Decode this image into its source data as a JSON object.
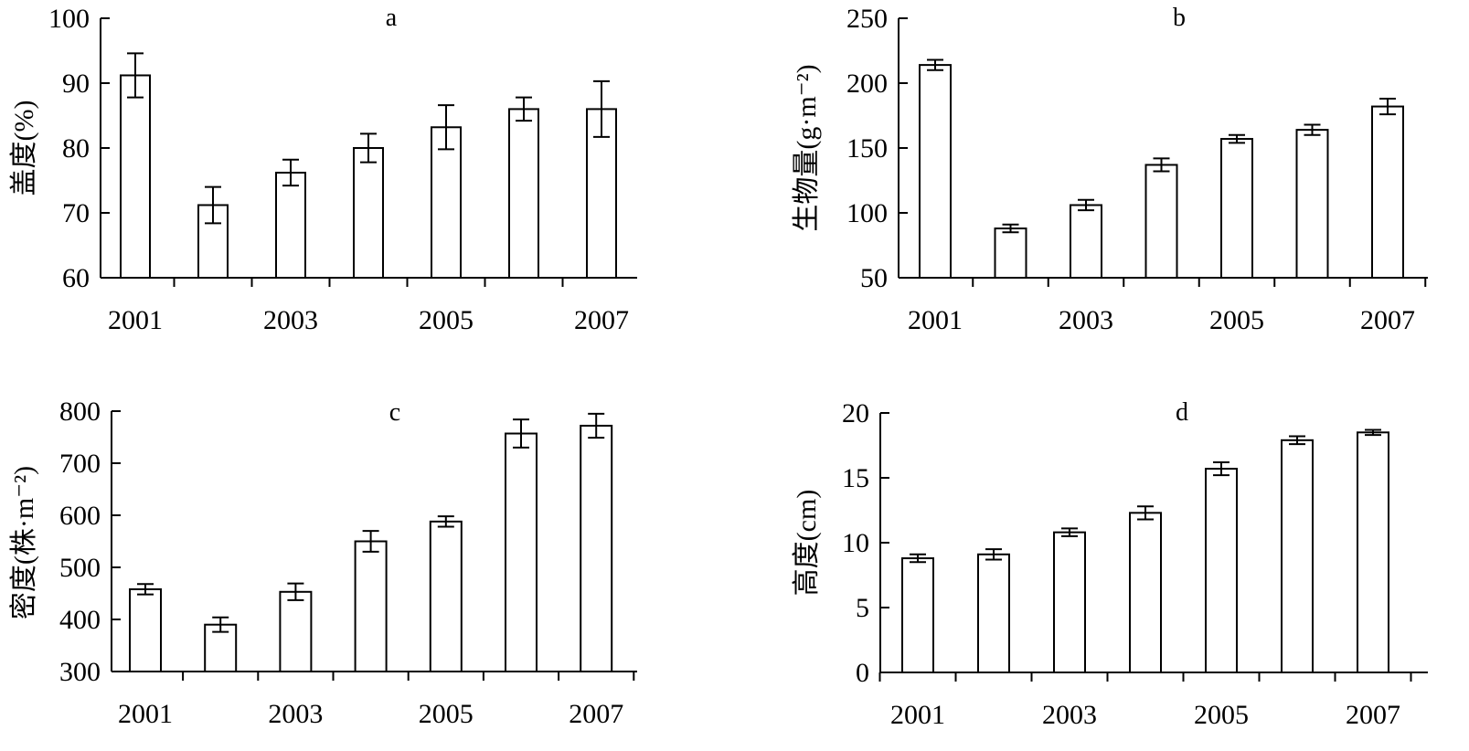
{
  "chart_data": [
    {
      "type": "bar",
      "panel_label": "a",
      "ylabel": "盖度(%)",
      "x_ticks": [
        "2001",
        "2003",
        "2005",
        "2007"
      ],
      "categories": [
        "2001",
        "2002",
        "2003",
        "2004",
        "2005",
        "2006",
        "2007"
      ],
      "values": [
        91.2,
        71.2,
        76.2,
        80.0,
        83.2,
        86.0,
        86.0
      ],
      "errors": [
        3.4,
        2.8,
        2.0,
        2.2,
        3.4,
        1.8,
        4.3
      ],
      "ylim": [
        60,
        100
      ],
      "yticks": [
        "60",
        "70",
        "80",
        "90",
        "100"
      ],
      "grid": false
    },
    {
      "type": "bar",
      "panel_label": "b",
      "ylabel": "生物量(g·m⁻²)",
      "x_ticks": [
        "2001",
        "2003",
        "2005",
        "2007"
      ],
      "categories": [
        "2001",
        "2002",
        "2003",
        "2004",
        "2005",
        "2006",
        "2007"
      ],
      "values": [
        214,
        88,
        106,
        137,
        157,
        164,
        182
      ],
      "errors": [
        4,
        3,
        4,
        5,
        3,
        4,
        6
      ],
      "ylim": [
        50,
        250
      ],
      "yticks": [
        "50",
        "100",
        "150",
        "200",
        "250"
      ],
      "grid": false
    },
    {
      "type": "bar",
      "panel_label": "c",
      "ylabel": "密度(株·m⁻²)",
      "x_ticks": [
        "2001",
        "2003",
        "2005",
        "2007"
      ],
      "categories": [
        "2001",
        "2002",
        "2003",
        "2004",
        "2005",
        "2006",
        "2007"
      ],
      "values": [
        458,
        390,
        453,
        550,
        588,
        757,
        772
      ],
      "errors": [
        10,
        14,
        16,
        20,
        10,
        27,
        23
      ],
      "ylim": [
        300,
        800
      ],
      "yticks": [
        "300",
        "400",
        "500",
        "600",
        "700",
        "800"
      ],
      "grid": false
    },
    {
      "type": "bar",
      "panel_label": "d",
      "ylabel": "高度(cm)",
      "x_ticks": [
        "2001",
        "2003",
        "2005",
        "2007"
      ],
      "categories": [
        "2001",
        "2002",
        "2003",
        "2004",
        "2005",
        "2006",
        "2007"
      ],
      "values": [
        8.8,
        9.1,
        10.8,
        12.3,
        15.7,
        17.9,
        18.5
      ],
      "errors": [
        0.3,
        0.4,
        0.3,
        0.5,
        0.5,
        0.3,
        0.2
      ],
      "ylim": [
        0,
        20
      ],
      "yticks": [
        "0",
        "5",
        "10",
        "15",
        "20"
      ],
      "grid": false
    }
  ]
}
